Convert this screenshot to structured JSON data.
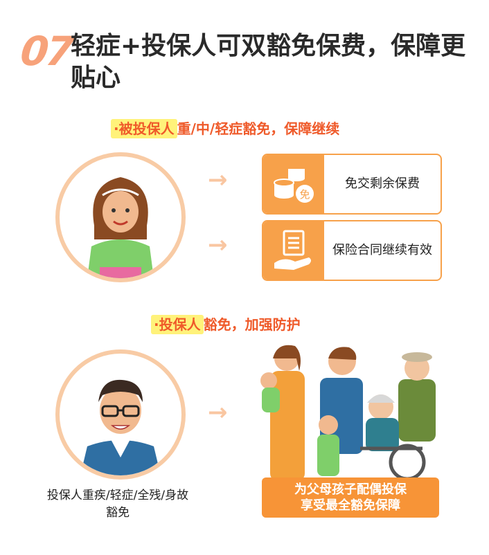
{
  "heading": {
    "number": "07",
    "title": "轻症+投保人可双豁免保费，保障更贴心"
  },
  "section1": {
    "bullet": "·",
    "highlight": "被投保人",
    "rest": "重/中/轻症豁免，保障继续"
  },
  "cards": [
    {
      "label": "免交剩余保费",
      "icon": "coins-exempt-icon",
      "badge": "免"
    },
    {
      "label": "保险合同继续有效",
      "icon": "contract-hand-icon"
    }
  ],
  "section2": {
    "bullet": "·",
    "highlight": "投保人",
    "rest": "豁免，加强防护"
  },
  "arrow_glyph": "→",
  "caption": "投保人重疾/轻症/全残/身故豁免",
  "banner": {
    "line1": "为父母孩子配偶投保",
    "line2": "享受最全豁免保障"
  },
  "colors": {
    "orange": "#f7a14a",
    "title_red": "#ef5a2a",
    "highlight": "#fff27a",
    "ring": "#f8cba5"
  }
}
